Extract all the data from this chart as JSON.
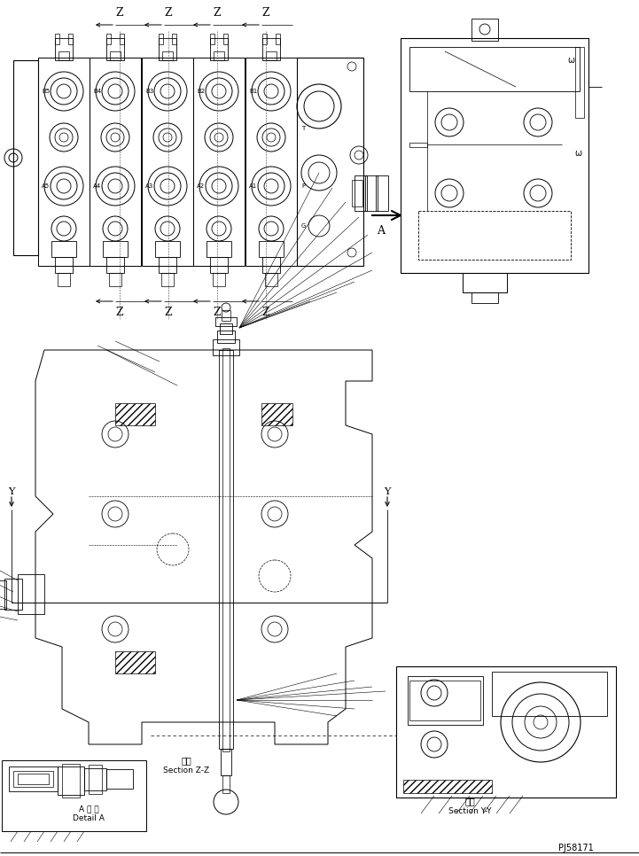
{
  "background_color": "#ffffff",
  "line_color": "#000000",
  "fig_width": 7.21,
  "fig_height": 9.66,
  "dpi": 100,
  "labels": {
    "section_zz_jp": "断面",
    "section_zz_en": "Section Z-Z",
    "section_yy_jp": "断面",
    "section_yy_en": "Section Y-Y",
    "detail_a_jp": "A 詳 細",
    "detail_a_en": "Detail A",
    "part_number": "PJ58171",
    "label_a": "A",
    "label_y": "Y",
    "label_z": "Z"
  }
}
